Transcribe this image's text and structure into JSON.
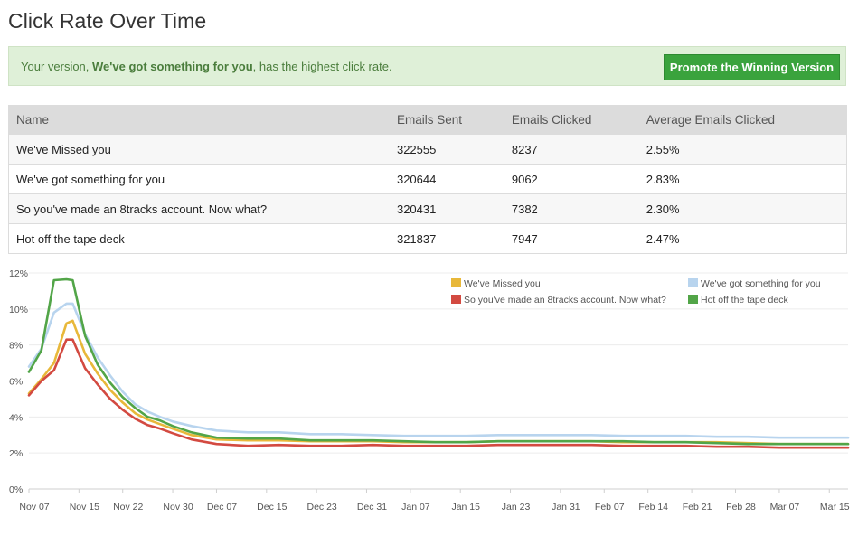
{
  "page": {
    "title": "Click Rate Over Time"
  },
  "alert": {
    "prefix": "Your version, ",
    "highlight": "We've got something for you",
    "suffix": ", has the highest click rate.",
    "button_label": "Promote the Winning Version"
  },
  "table": {
    "headers": [
      "Name",
      "Emails Sent",
      "Emails Clicked",
      "Average Emails Clicked"
    ],
    "rows": [
      [
        "We've Missed you",
        "322555",
        "8237",
        "2.55%"
      ],
      [
        "We've got something for you",
        "320644",
        "9062",
        "2.83%"
      ],
      [
        "So you've made an 8tracks account. Now what?",
        "320431",
        "7382",
        "2.30%"
      ],
      [
        "Hot off the tape deck",
        "321837",
        "7947",
        "2.47%"
      ]
    ]
  },
  "colors": {
    "yellow": "#e8b83a",
    "blue": "#b8d4ee",
    "red": "#d34a41",
    "green": "#52a548",
    "alert_bg": "#dff0d8",
    "button": "#3aa33d"
  },
  "chart_data": {
    "type": "line",
    "title": "",
    "xlabel": "",
    "ylabel": "",
    "ylim": [
      0,
      12
    ],
    "y_ticks": [
      "0%",
      "2%",
      "4%",
      "6%",
      "8%",
      "10%",
      "12%"
    ],
    "x_tick_labels": [
      "Nov 07",
      "Nov 15",
      "Nov 22",
      "Nov 30",
      "Dec 07",
      "Dec 15",
      "Dec 23",
      "Dec 31",
      "Jan 07",
      "Jan 15",
      "Jan 23",
      "Jan 31",
      "Feb 07",
      "Feb 14",
      "Feb 21",
      "Feb 28",
      "Mar 07",
      "Mar 15"
    ],
    "x_tick_day": [
      0,
      8,
      15,
      23,
      30,
      38,
      46,
      54,
      61,
      69,
      77,
      85,
      92,
      99,
      106,
      113,
      120,
      128
    ],
    "grid": true,
    "legend_position": "top-right",
    "days": [
      0,
      2,
      4,
      6,
      7,
      9,
      11,
      13,
      15,
      17,
      19,
      21,
      23,
      26,
      30,
      35,
      40,
      45,
      50,
      55,
      60,
      65,
      70,
      75,
      80,
      85,
      90,
      95,
      100,
      105,
      110,
      115,
      120,
      125,
      131
    ],
    "series": [
      {
        "name": "We've Missed you",
        "color": "#e8b83a",
        "values": [
          5.3,
          6.1,
          7.0,
          9.2,
          9.35,
          7.5,
          6.4,
          5.5,
          4.8,
          4.2,
          3.85,
          3.6,
          3.35,
          3.0,
          2.75,
          2.7,
          2.7,
          2.65,
          2.65,
          2.65,
          2.6,
          2.6,
          2.6,
          2.65,
          2.65,
          2.65,
          2.65,
          2.6,
          2.6,
          2.6,
          2.6,
          2.55,
          2.5,
          2.5,
          2.5
        ]
      },
      {
        "name": "We've got something for you",
        "color": "#b8d4ee",
        "values": [
          6.8,
          7.8,
          9.8,
          10.3,
          10.3,
          8.6,
          7.3,
          6.3,
          5.4,
          4.7,
          4.3,
          4.0,
          3.75,
          3.5,
          3.25,
          3.15,
          3.15,
          3.05,
          3.05,
          3.0,
          2.95,
          2.95,
          2.95,
          3.0,
          3.0,
          3.0,
          3.0,
          2.95,
          2.95,
          2.95,
          2.9,
          2.9,
          2.85,
          2.85,
          2.85
        ]
      },
      {
        "name": "So you've made an 8tracks account. Now what?",
        "color": "#d34a41",
        "values": [
          5.2,
          6.0,
          6.6,
          8.3,
          8.3,
          6.7,
          5.8,
          5.0,
          4.4,
          3.9,
          3.55,
          3.35,
          3.1,
          2.75,
          2.5,
          2.4,
          2.45,
          2.4,
          2.4,
          2.45,
          2.4,
          2.4,
          2.4,
          2.45,
          2.45,
          2.45,
          2.45,
          2.4,
          2.4,
          2.4,
          2.35,
          2.35,
          2.3,
          2.3,
          2.3
        ]
      },
      {
        "name": "Hot off the tape deck",
        "color": "#52a548",
        "values": [
          6.5,
          7.7,
          11.6,
          11.65,
          11.6,
          8.5,
          6.9,
          5.9,
          5.1,
          4.5,
          4.0,
          3.8,
          3.5,
          3.15,
          2.85,
          2.8,
          2.8,
          2.7,
          2.7,
          2.7,
          2.65,
          2.6,
          2.6,
          2.65,
          2.65,
          2.65,
          2.65,
          2.65,
          2.6,
          2.6,
          2.55,
          2.5,
          2.5,
          2.5,
          2.5
        ]
      }
    ]
  }
}
